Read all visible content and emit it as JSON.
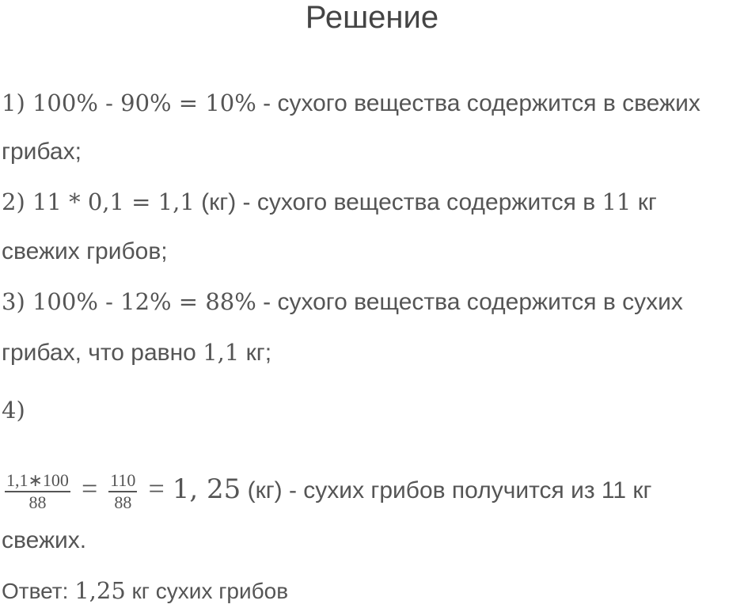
{
  "title": "Решение",
  "lines": [
    [
      {
        "t": "1) 100% - 90% = 10%",
        "m": true
      },
      {
        "t": " - сухого вещества содержится в свежих"
      }
    ],
    [
      {
        "t": "грибах;"
      }
    ],
    [
      {
        "t": "2) 11 * 0,1 = 1,1",
        "m": true
      },
      {
        "t": " (кг) - сухого вещества содержится в "
      },
      {
        "t": "11",
        "m": true
      },
      {
        "t": " кг"
      }
    ],
    [
      {
        "t": "свежих грибов;"
      }
    ],
    [
      {
        "t": "3) 100% - 12% = 88%",
        "m": true
      },
      {
        "t": " - сухого вещества содержится в сухих"
      }
    ],
    [
      {
        "t": "грибах, что равно "
      },
      {
        "t": "1,1",
        "m": true
      },
      {
        "t": " кг;"
      }
    ],
    [
      {
        "t": "4)",
        "m": true
      }
    ]
  ],
  "formula": {
    "frac1_num": "1,1∗100",
    "frac1_den": "88",
    "frac2_num": "110",
    "frac2_den": "88",
    "eq": "=",
    "result": "1, 25",
    "text": " (кг) - сухих грибов получится из 11 кг"
  },
  "formula_cont": "свежих.",
  "answer": {
    "label": "Ответ: ",
    "value": "1,25",
    "text": " кг сухих грибов"
  }
}
